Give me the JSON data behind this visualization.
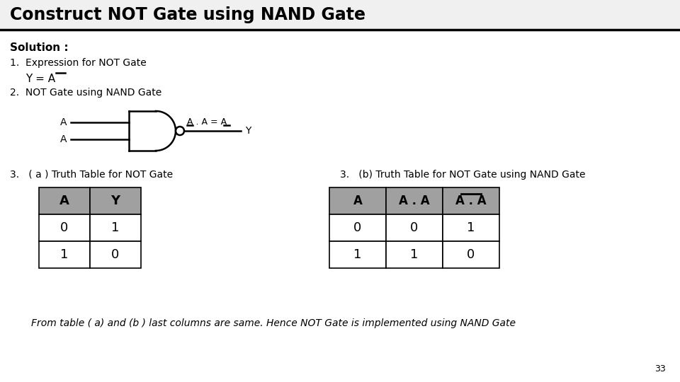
{
  "title": "Construct NOT Gate using NAND Gate",
  "title_fontsize": 17,
  "title_fontweight": "bold",
  "bg_color": "#ffffff",
  "solution_text": "Solution :",
  "point1_text": "1.  Expression for NOT Gate",
  "point2_text": "2.  NOT Gate using NAND Gate",
  "point3a_text": "3.   ( a ) Truth Table for NOT Gate",
  "point3b_text": "3.   (b) Truth Table for NOT Gate using NAND Gate",
  "footer_text": "From table ( a) and (b ) last columns are same. Hence NOT Gate is implemented using NAND Gate",
  "page_num": "33",
  "table_a_headers": [
    "A",
    "Y"
  ],
  "table_a_rows": [
    [
      "0",
      "1"
    ],
    [
      "1",
      "0"
    ]
  ],
  "table_b_rows": [
    [
      "0",
      "0",
      "1"
    ],
    [
      "1",
      "1",
      "0"
    ]
  ],
  "header_color": "#a0a0a0",
  "line_color": "#000000"
}
